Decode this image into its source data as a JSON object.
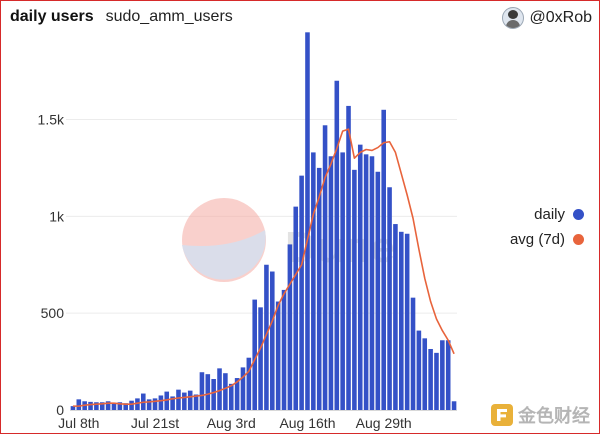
{
  "header": {
    "title": "daily users",
    "subtitle": "sudo_amm_users",
    "author": "@0xRob"
  },
  "brand": {
    "text": "金色财经",
    "watermark": "Dune"
  },
  "colors": {
    "daily": "#3451c7",
    "avg": "#e8643c",
    "border": "#d62a2a",
    "grid": "#ececec"
  },
  "chart_data": {
    "type": "bar",
    "title": "daily users",
    "ylim": [
      0,
      1900
    ],
    "yticks": [
      0,
      500,
      1000,
      1500
    ],
    "ytick_labels": [
      "0",
      "500",
      "1k",
      "1.5k"
    ],
    "xtick_labels": [
      "Jul 8th",
      "Jul 21st",
      "Aug 3rd",
      "Aug 16th",
      "Aug 29th"
    ],
    "xtick_index": [
      1,
      14,
      27,
      40,
      53
    ],
    "legend": {
      "position": "right",
      "entries": [
        "daily",
        "avg (7d)"
      ]
    },
    "series": [
      {
        "name": "daily",
        "type": "bar",
        "values": [
          20,
          55,
          45,
          42,
          40,
          40,
          45,
          38,
          40,
          35,
          48,
          60,
          85,
          55,
          60,
          75,
          95,
          70,
          105,
          90,
          100,
          80,
          195,
          185,
          160,
          215,
          190,
          135,
          165,
          220,
          270,
          570,
          530,
          750,
          715,
          560,
          620,
          855,
          1050,
          1210,
          1950,
          1330,
          1250,
          1470,
          1310,
          1700,
          1330,
          1570,
          1240,
          1370,
          1320,
          1310,
          1230,
          1550,
          1150,
          960,
          920,
          910,
          580,
          410,
          370,
          315,
          295,
          360,
          360,
          45
        ],
        "note": "values aligned to dates Jul 7th .. Sep 10th, 2022"
      },
      {
        "name": "avg (7d)",
        "type": "line",
        "values": [
          20,
          20,
          25,
          28,
          30,
          32,
          35,
          35,
          32,
          30,
          30,
          35,
          40,
          42,
          45,
          48,
          52,
          58,
          62,
          65,
          68,
          72,
          75,
          82,
          90,
          100,
          112,
          125,
          145,
          170,
          200,
          260,
          320,
          390,
          460,
          540,
          600,
          650,
          700,
          750,
          880,
          1010,
          1100,
          1200,
          1270,
          1350,
          1440,
          1450,
          1300,
          1330,
          1345,
          1340,
          1355,
          1380,
          1385,
          1330,
          1220,
          1110,
          990,
          830,
          680,
          560,
          470,
          410,
          360,
          290
        ]
      }
    ]
  }
}
